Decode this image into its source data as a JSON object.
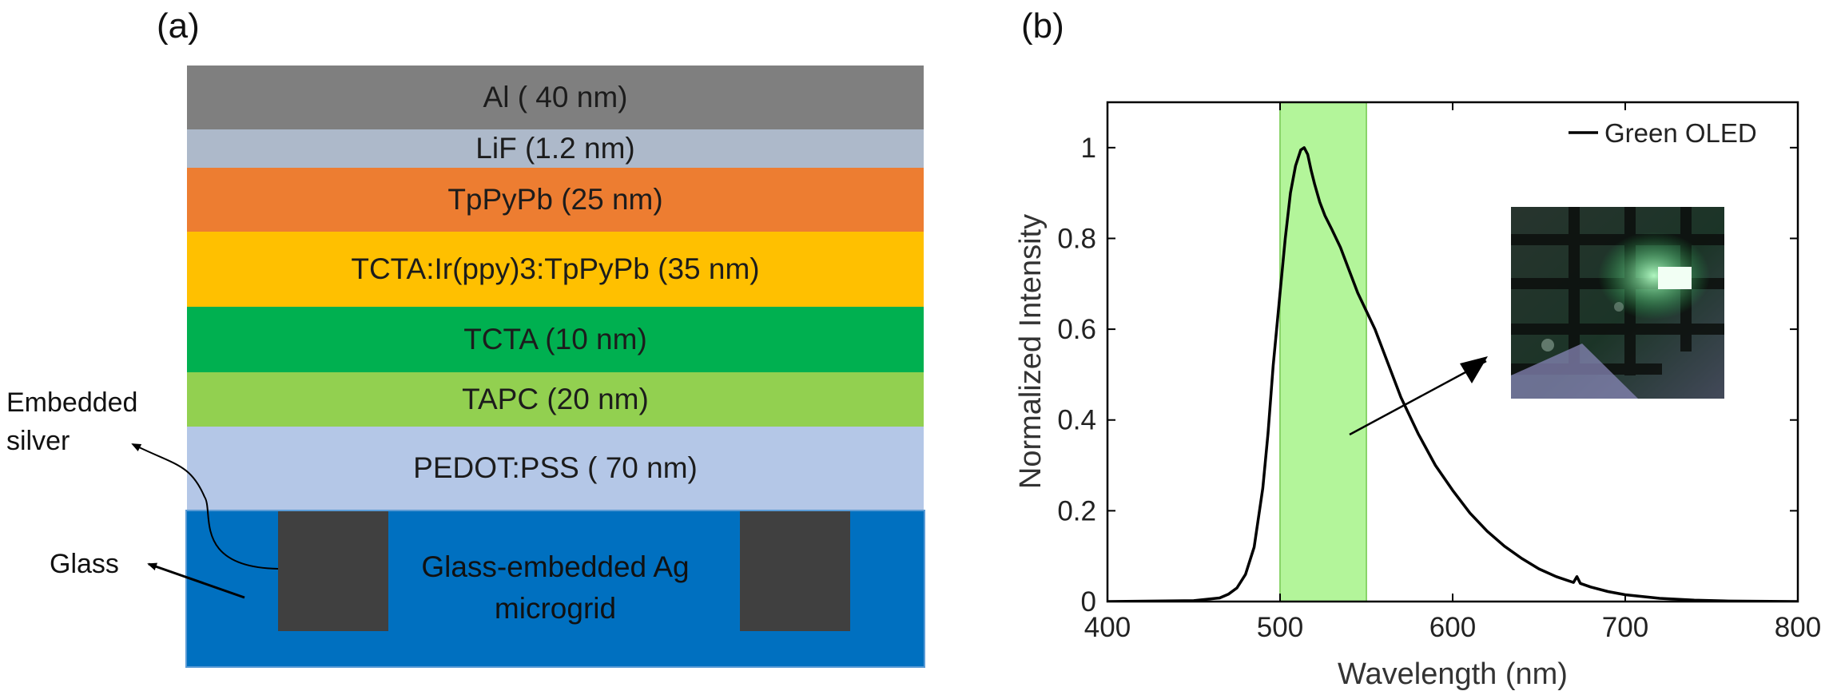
{
  "panel_a": {
    "label": "(a)",
    "layers": [
      {
        "name": "al",
        "text": "Al ( 40 nm)",
        "color": "#7f7f7f"
      },
      {
        "name": "lif",
        "text": "LiF (1.2 nm)",
        "color": "#adb9ca"
      },
      {
        "name": "tppypb",
        "text": "TpPyPb (25 nm)",
        "color": "#ed7d31"
      },
      {
        "name": "emission",
        "text": "TCTA:Ir(ppy)3:TpPyPb (35 nm)",
        "color": "#ffc000"
      },
      {
        "name": "tcta",
        "text": "TCTA (10 nm)",
        "color": "#00b050"
      },
      {
        "name": "tapc",
        "text": "TAPC (20 nm)",
        "color": "#92d050"
      },
      {
        "name": "pedot",
        "text": "PEDOT:PSS ( 70 nm)",
        "color": "#b4c7e7"
      }
    ],
    "substrate": {
      "line1": "Glass-embedded Ag",
      "line2": "microgrid",
      "color": "#0070c0",
      "grid_color": "#404040"
    },
    "labels": {
      "embedded_line1": "Embedded",
      "embedded_line2": "silver",
      "glass": "Glass"
    }
  },
  "panel_b": {
    "label": "(b)"
  },
  "chart_data": {
    "type": "line",
    "xlabel": "Wavelength (nm)",
    "ylabel": "Normalized Intensity",
    "xlim": [
      400,
      800
    ],
    "ylim": [
      0,
      1.1
    ],
    "xticks": [
      400,
      500,
      600,
      700,
      800
    ],
    "yticks": [
      0,
      0.2,
      0.4,
      0.6,
      0.8,
      1
    ],
    "ytick_labels": [
      "0",
      "0.2",
      "0.4",
      "0.6",
      "0.8",
      "1"
    ],
    "grid": false,
    "legend": "top-right",
    "highlight_band": {
      "x": [
        500,
        550
      ],
      "color": "#b3f59a"
    },
    "inset": "photo of lit green OLED device",
    "series": [
      {
        "name": "Green OLED",
        "color": "#000000",
        "x": [
          400,
          450,
          465,
          470,
          475,
          480,
          485,
          490,
          493,
          496,
          500,
          503,
          506,
          509,
          512,
          514,
          516,
          518,
          520,
          523,
          526,
          530,
          535,
          540,
          545,
          550,
          555,
          560,
          565,
          570,
          575,
          580,
          590,
          600,
          610,
          620,
          630,
          640,
          650,
          660,
          670,
          672,
          674,
          680,
          690,
          700,
          720,
          740,
          760,
          800
        ],
        "y": [
          0,
          0.002,
          0.008,
          0.016,
          0.03,
          0.06,
          0.12,
          0.25,
          0.37,
          0.52,
          0.68,
          0.8,
          0.9,
          0.96,
          0.995,
          1.0,
          0.985,
          0.95,
          0.92,
          0.88,
          0.85,
          0.82,
          0.78,
          0.73,
          0.68,
          0.64,
          0.6,
          0.55,
          0.5,
          0.45,
          0.41,
          0.37,
          0.3,
          0.245,
          0.195,
          0.155,
          0.122,
          0.095,
          0.072,
          0.055,
          0.042,
          0.055,
          0.04,
          0.032,
          0.022,
          0.015,
          0.007,
          0.003,
          0.001,
          0
        ]
      }
    ]
  }
}
